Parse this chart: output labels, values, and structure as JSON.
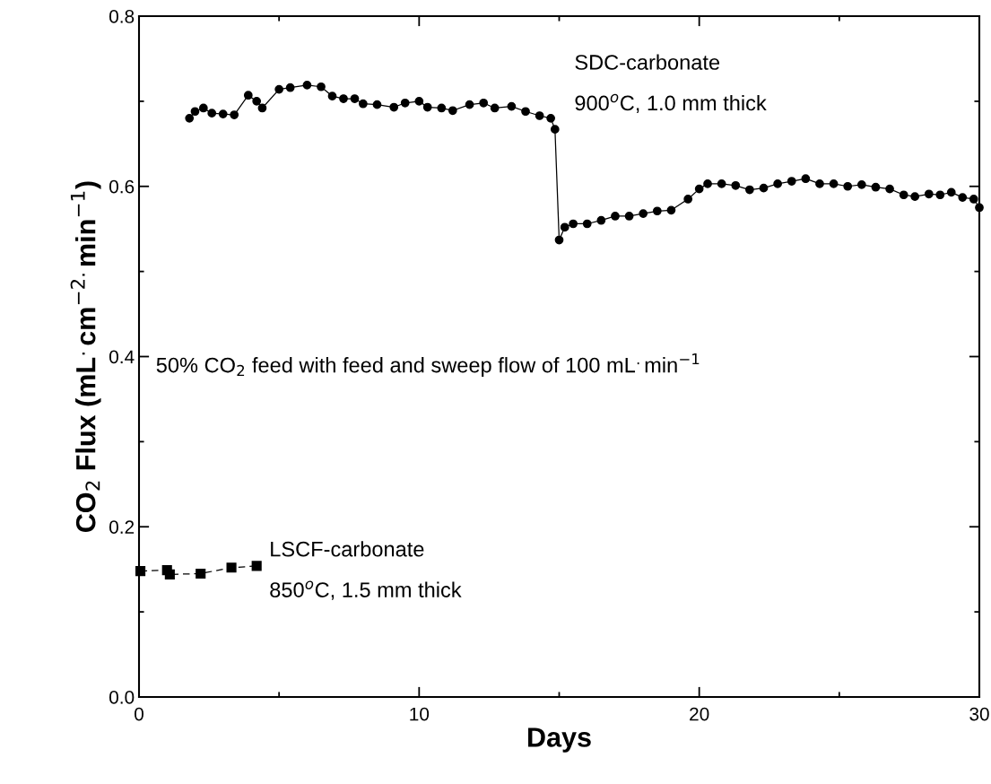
{
  "chart_data": {
    "type": "line",
    "xlabel": "Days",
    "ylabel": "CO$_{2}$ Flux (mL$^{.}$cm$^{−2.}$min$^{−1}$)",
    "xlim": [
      0,
      30
    ],
    "ylim": [
      0,
      0.8
    ],
    "xticks": [
      0,
      {
        "value": 5,
        "label": null
      },
      10,
      {
        "value": 15,
        "label": null
      },
      20,
      {
        "value": 25,
        "label": null
      },
      30
    ],
    "yticks": [
      {
        "value": 0,
        "label": "0.0"
      },
      {
        "value": 0.1,
        "label": null
      },
      0.2,
      {
        "value": 0.3,
        "label": null
      },
      0.4,
      {
        "value": 0.5,
        "label": null
      },
      0.6,
      {
        "value": 0.7,
        "label": null
      },
      0.8
    ],
    "grid": false,
    "legend": false,
    "series": [
      {
        "color": "#000000",
        "marker": "circle",
        "line_style": "solid",
        "x": [
          1.8,
          2.0,
          2.3,
          2.6,
          3.0,
          3.4,
          3.9,
          4.2,
          4.4,
          5.0,
          5.4,
          6.0,
          6.5,
          6.9,
          7.3,
          7.7,
          8.0,
          8.5,
          9.1,
          9.5,
          10.0,
          10.3,
          10.8,
          11.2,
          11.8,
          12.3,
          12.7,
          13.3,
          13.8,
          14.3,
          14.7,
          14.85,
          15.0,
          15.2,
          15.5,
          16.0,
          16.5,
          17.0,
          17.5,
          18.0,
          18.5,
          19.0,
          19.6,
          20.0,
          20.3,
          20.8,
          21.3,
          21.8,
          22.3,
          22.8,
          23.3,
          23.8,
          24.3,
          24.8,
          25.3,
          25.8,
          26.3,
          26.8,
          27.3,
          27.7,
          28.2,
          28.6,
          29.0,
          29.4,
          29.8,
          30.0
        ],
        "values": [
          0.68,
          0.688,
          0.692,
          0.686,
          0.685,
          0.684,
          0.707,
          0.7,
          0.692,
          0.714,
          0.716,
          0.719,
          0.717,
          0.706,
          0.703,
          0.703,
          0.697,
          0.696,
          0.693,
          0.698,
          0.7,
          0.693,
          0.692,
          0.689,
          0.696,
          0.698,
          0.692,
          0.694,
          0.688,
          0.683,
          0.68,
          0.667,
          0.537,
          0.552,
          0.556,
          0.556,
          0.56,
          0.565,
          0.565,
          0.568,
          0.571,
          0.572,
          0.585,
          0.597,
          0.603,
          0.603,
          0.601,
          0.596,
          0.598,
          0.603,
          0.606,
          0.609,
          0.603,
          0.603,
          0.6,
          0.602,
          0.599,
          0.597,
          0.59,
          0.588,
          0.591,
          0.59,
          0.593,
          0.587,
          0.585,
          0.575
        ]
      },
      {
        "color": "#000000",
        "marker": "square",
        "line_style": "dashed",
        "x": [
          0.05,
          1.0,
          1.1,
          2.2,
          3.3,
          4.2
        ],
        "values": [
          0.148,
          0.149,
          0.144,
          0.145,
          0.152,
          0.154
        ]
      }
    ],
    "annotations": [
      "SDC-carbonate",
      "900$^{o}$C, 1.0 mm thick",
      "50% CO$_{2}$ feed with feed and sweep flow of 100 mL$^{.}$min$^{−1}$",
      "LSCF-carbonate",
      "850$^{o}$C, 1.5 mm thick"
    ]
  }
}
